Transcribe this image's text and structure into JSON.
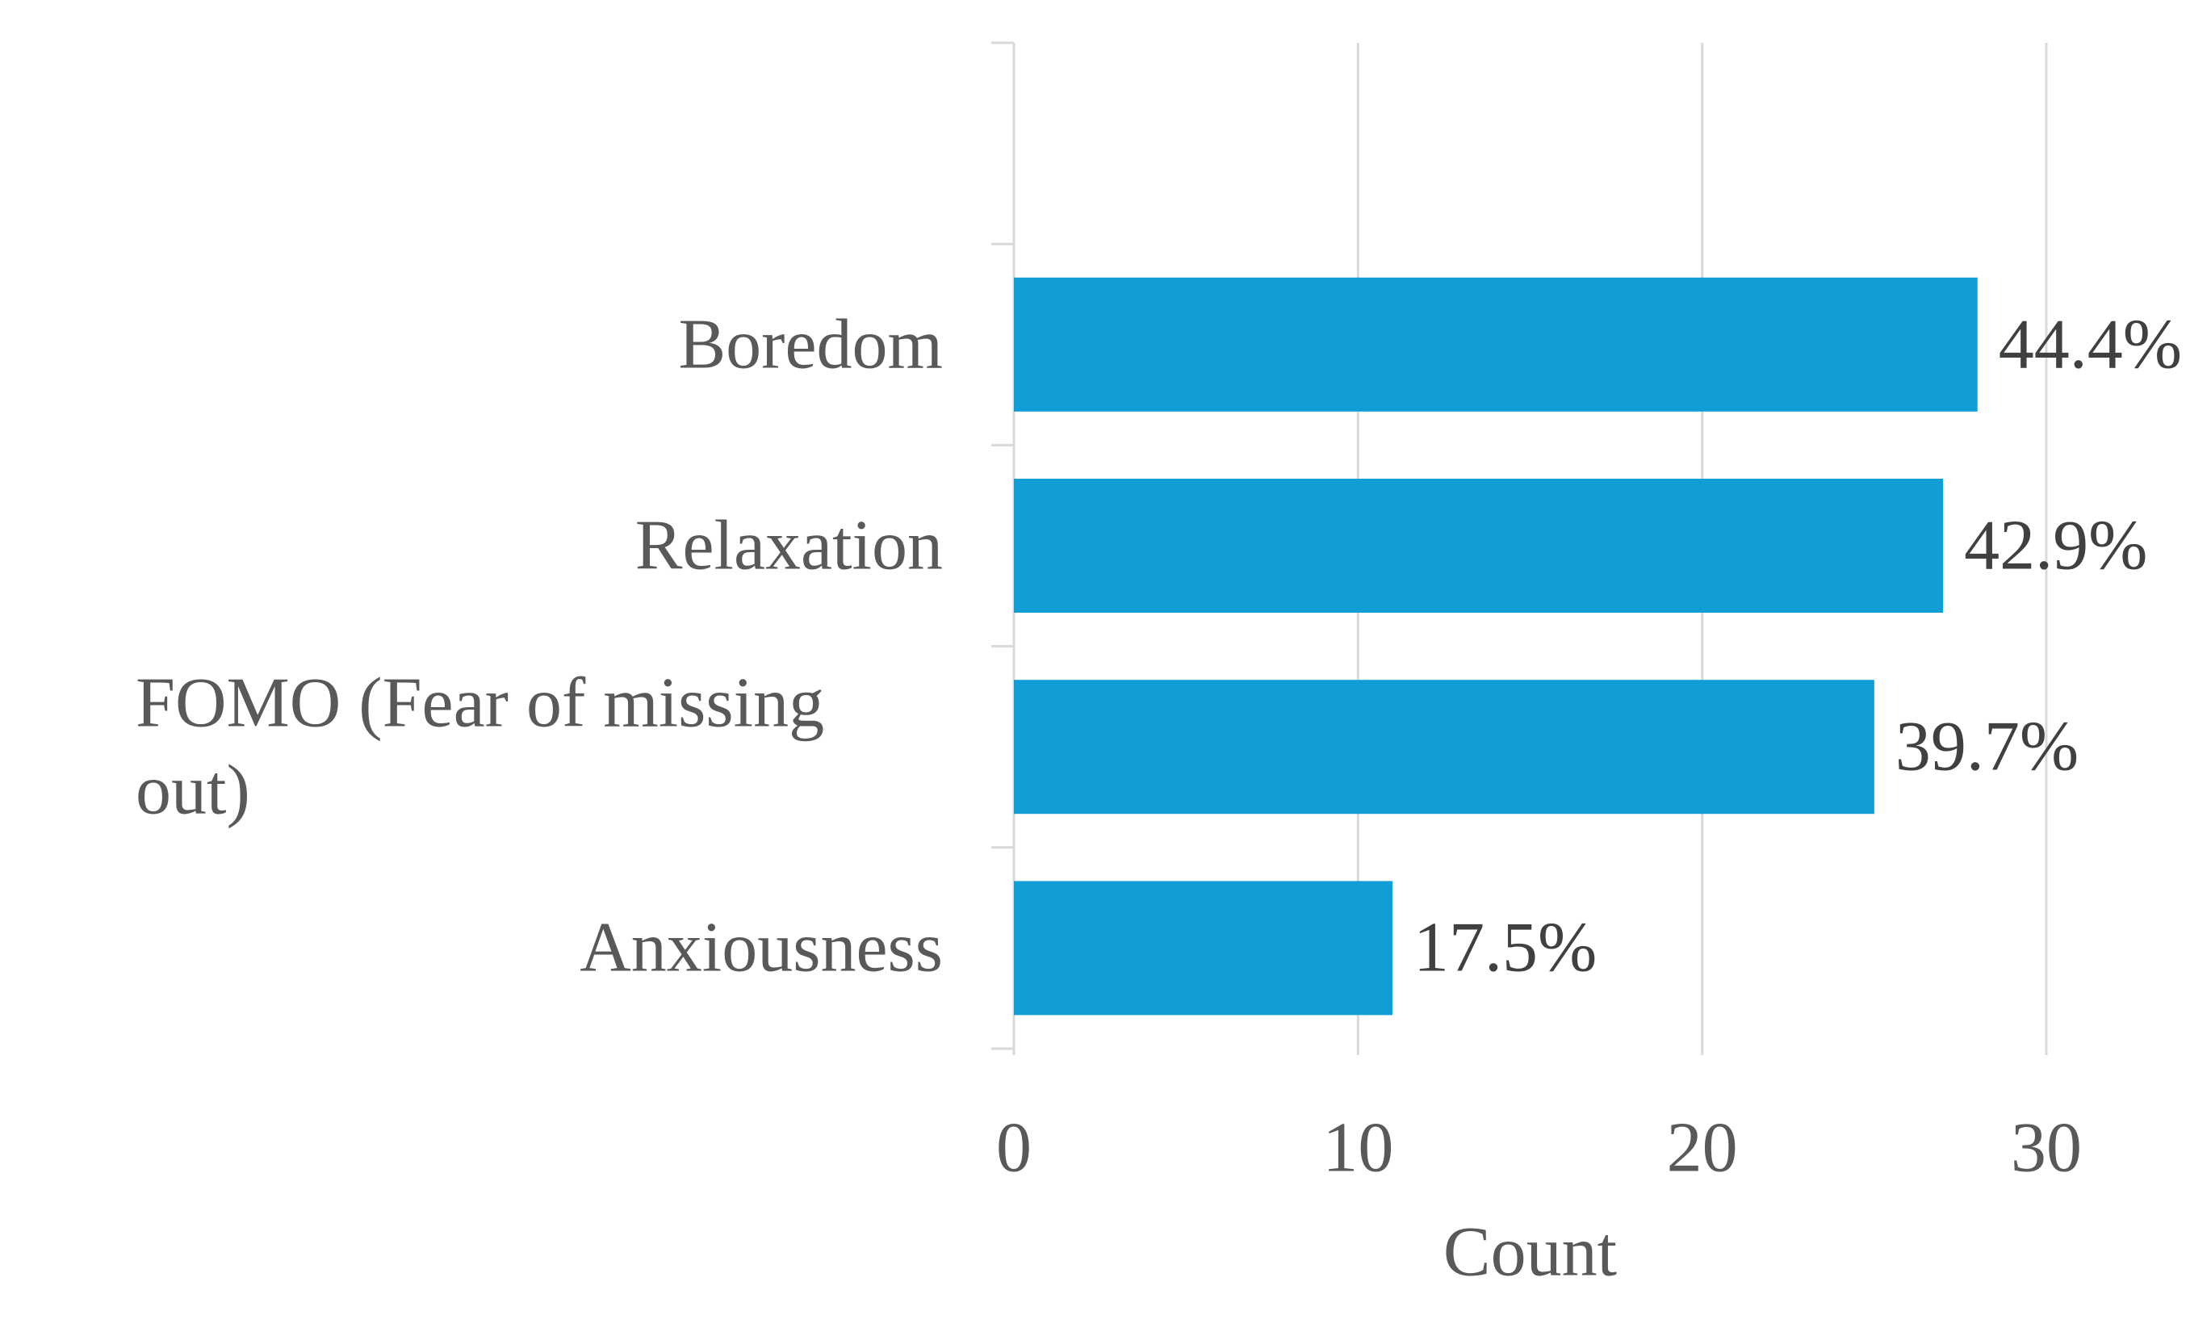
{
  "chart_data": {
    "type": "bar",
    "orientation": "horizontal",
    "x_label": "Count",
    "categories": [
      null,
      "Boredom",
      "Relaxation",
      "FOMO (Fear of missing out)",
      "Anxiousness"
    ],
    "values": [
      null,
      28,
      27,
      25,
      11
    ],
    "value_labels": [
      null,
      "44.4%",
      "42.9%",
      "39.7%",
      "17.5%"
    ],
    "color": "#119ed6",
    "xlim": [
      0,
      30
    ],
    "xticks": [
      0,
      10,
      20,
      30
    ],
    "grid": true
  }
}
